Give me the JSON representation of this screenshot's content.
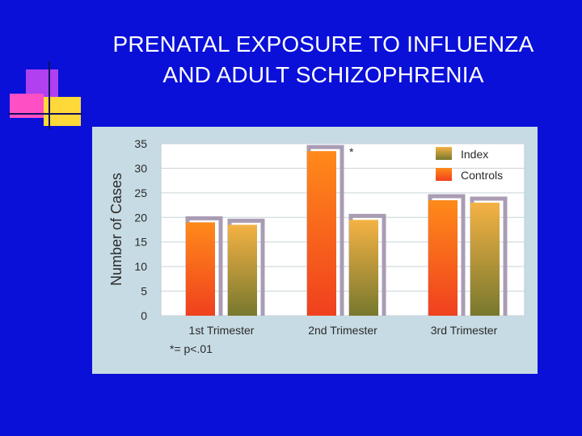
{
  "slide": {
    "title_line1": "PRENATAL EXPOSURE TO INFLUENZA",
    "title_line2": "AND ADULT SCHIZOPHRENIA",
    "background_color": "#0a10d8"
  },
  "chart_data": {
    "type": "bar",
    "ylabel": "Number of Cases",
    "xlabel": "",
    "ylim": [
      0,
      35
    ],
    "yticks": [
      "0",
      "5",
      "10",
      "15",
      "20",
      "25",
      "30",
      "35"
    ],
    "grid": true,
    "legend_position": "top-right",
    "categories": [
      "1st Trimester",
      "2nd Trimester",
      "3rd Trimester"
    ],
    "series": [
      {
        "name": "Controls",
        "values": [
          19,
          33.5,
          23.5
        ],
        "color": "#f04a22"
      },
      {
        "name": "Index",
        "values": [
          18.5,
          19.5,
          23
        ],
        "color": "#a19a3c"
      }
    ],
    "significance_marker": "*",
    "footnote": "*= p<.01"
  }
}
